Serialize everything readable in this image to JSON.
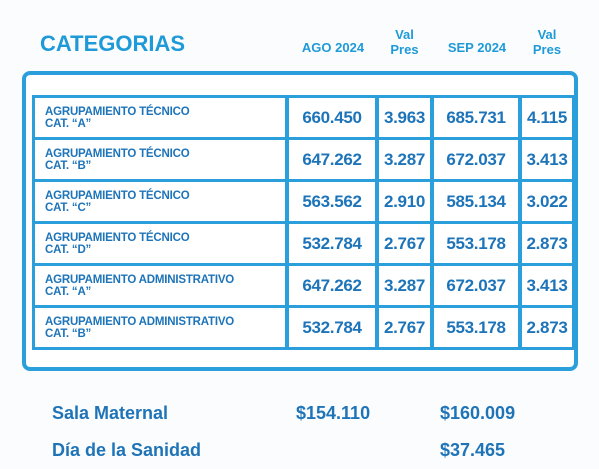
{
  "header": {
    "columns": [
      "CATEGORIAS",
      "AGO 2024",
      "Val\nPres",
      "SEP 2024",
      "Val\nPres"
    ]
  },
  "table": {
    "rows": [
      [
        "AGRUPAMIENTO TÉCNICO\nCAT. “A”",
        "660.450",
        "3.963",
        "685.731",
        "4.115"
      ],
      [
        "AGRUPAMIENTO TÉCNICO\nCAT. “B”",
        "647.262",
        "3.287",
        "672.037",
        "3.413"
      ],
      [
        "AGRUPAMIENTO TÉCNICO\nCAT. “C”",
        "563.562",
        "2.910",
        "585.134",
        "3.022"
      ],
      [
        "AGRUPAMIENTO TÉCNICO\nCAT. “D”",
        "532.784",
        "2.767",
        "553.178",
        "2.873"
      ],
      [
        "AGRUPAMIENTO ADMINISTRATIVO\nCAT. “A”",
        "647.262",
        "3.287",
        "672.037",
        "3.413"
      ],
      [
        "AGRUPAMIENTO ADMINISTRATIVO\nCAT. “B”",
        "532.784",
        "2.767",
        "553.178",
        "2.873"
      ]
    ]
  },
  "extras": [
    {
      "label": "Sala Maternal",
      "ago": "$154.110",
      "sep": "$160.009"
    },
    {
      "label": "Día de la Sanidad",
      "sep": "$37.465"
    }
  ]
}
